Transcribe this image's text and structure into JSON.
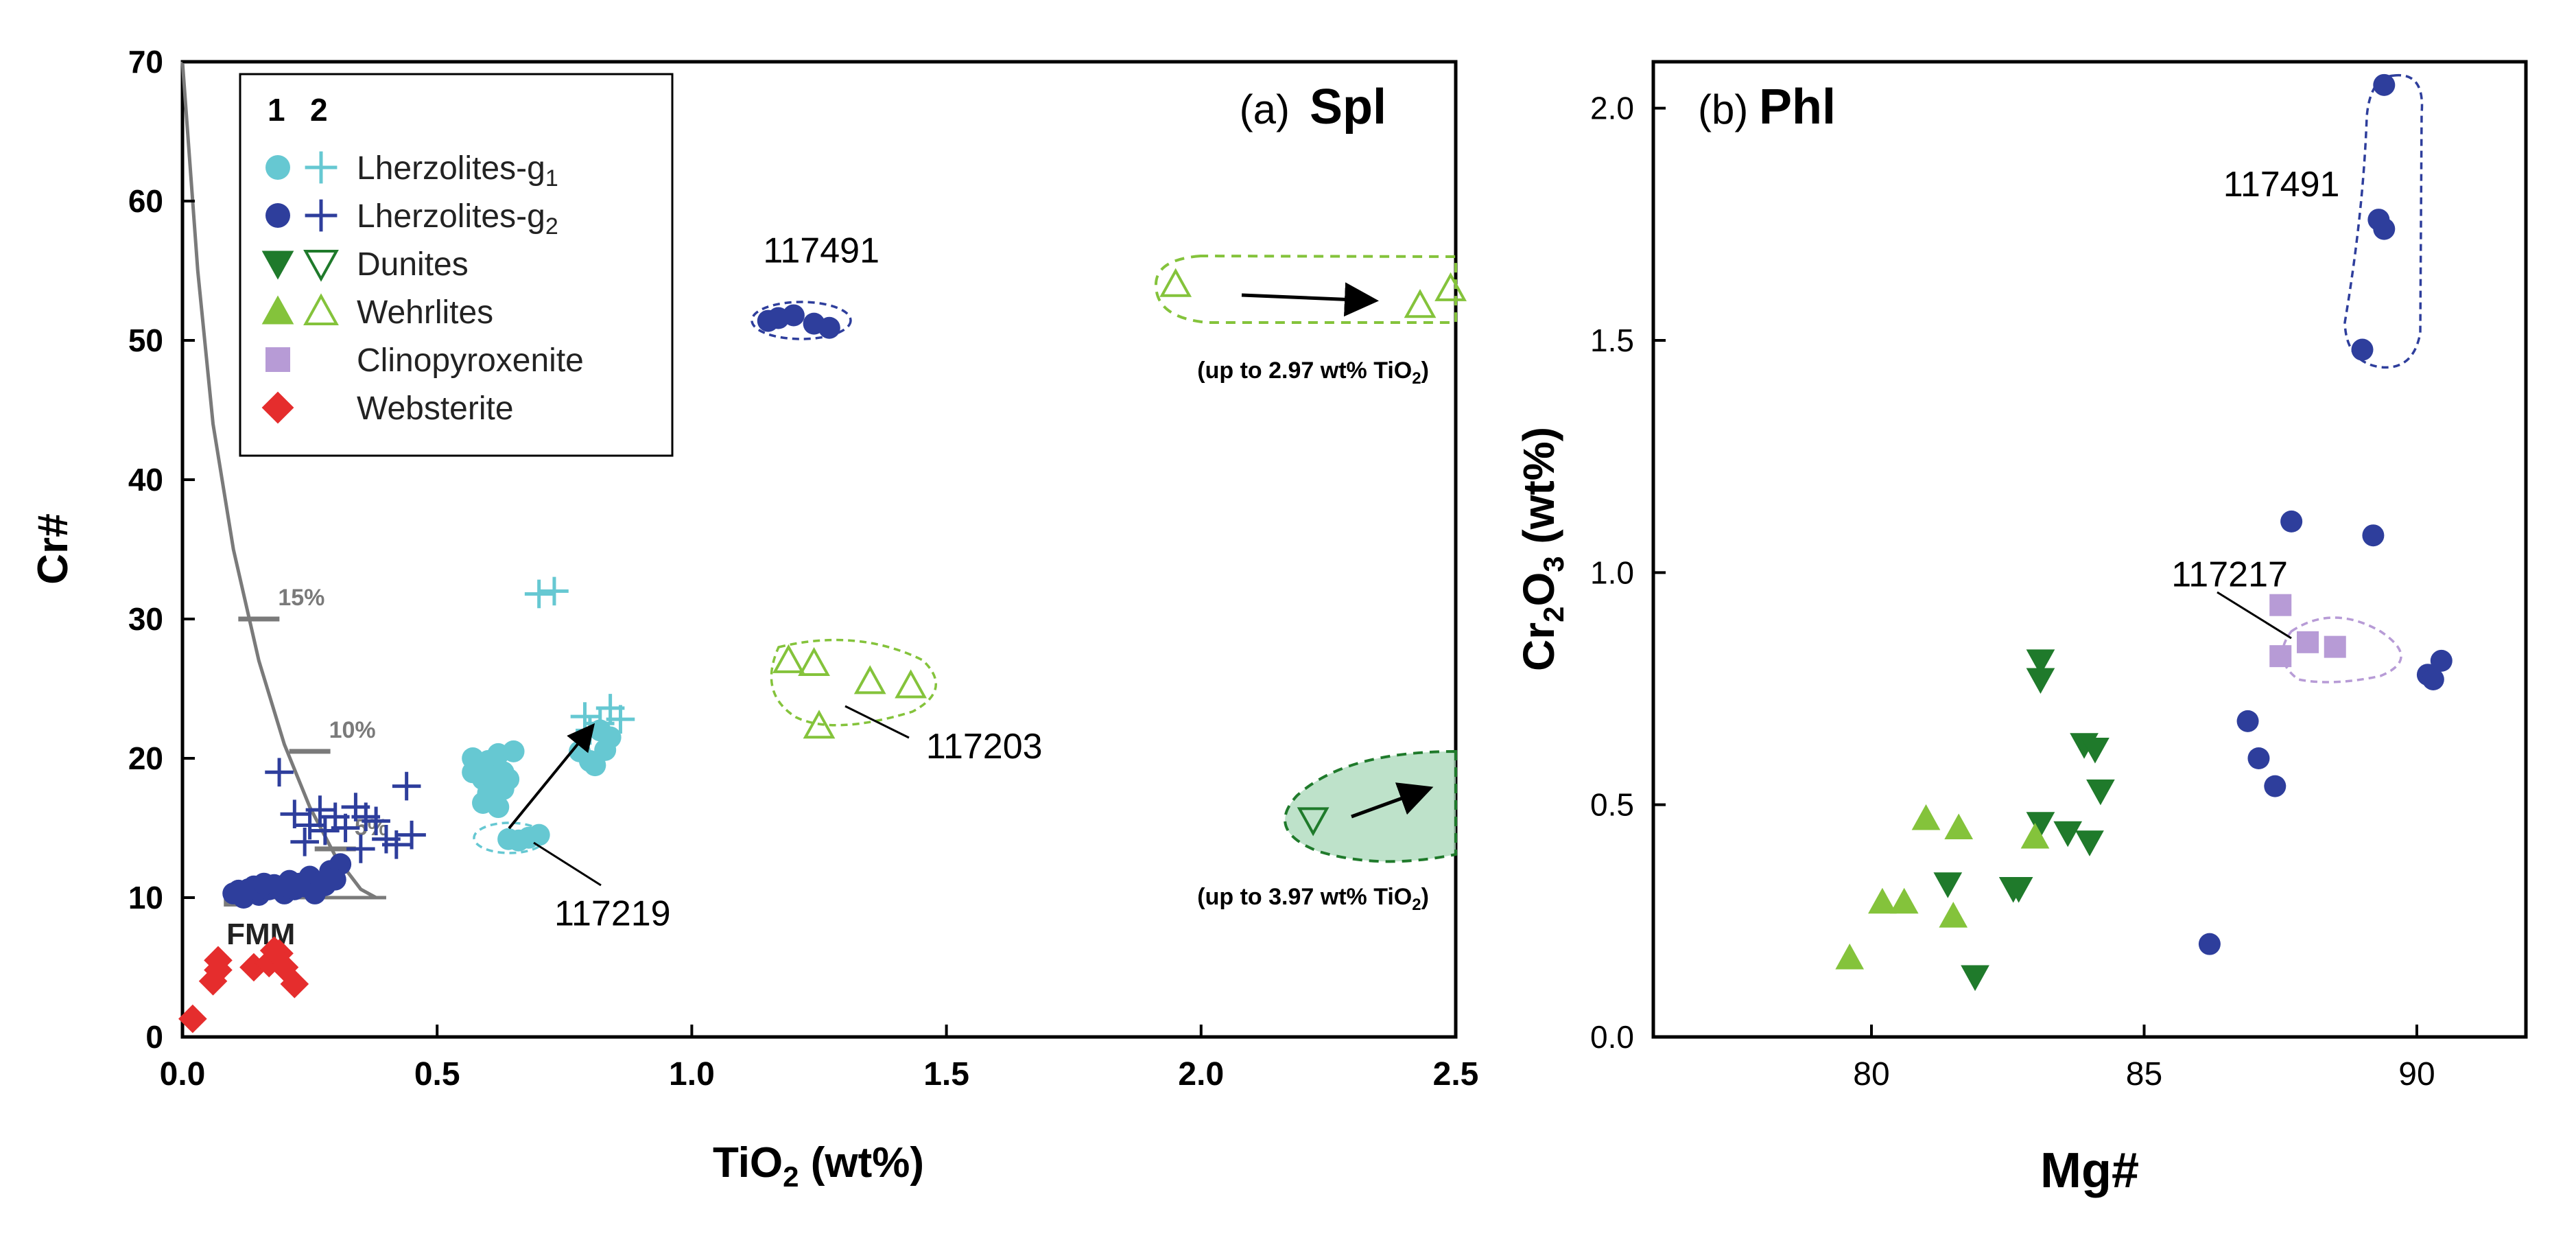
{
  "chart_data": [
    {
      "panel": "a",
      "type": "scatter",
      "panel_label": "(a)",
      "mineral": "Spl",
      "xlabel_main": "TiO",
      "xlabel_sub": "2",
      "xlabel_tail": " (wt%)",
      "ylabel": "Cr#",
      "xlim": [
        0,
        2.5
      ],
      "ylim": [
        0,
        70
      ],
      "x_ticks": [
        {
          "value": 0,
          "label": "0.0"
        },
        {
          "value": 0.5,
          "label": "0.5"
        },
        {
          "value": 1.0,
          "label": "1.0"
        },
        {
          "value": 1.5,
          "label": "1.5"
        },
        {
          "value": 2.0,
          "label": "2.0"
        },
        {
          "value": 2.5,
          "label": "2.5"
        }
      ],
      "y_ticks": [
        {
          "value": 0,
          "label": "0"
        },
        {
          "value": 10,
          "label": "10"
        },
        {
          "value": 20,
          "label": "20"
        },
        {
          "value": 30,
          "label": "30"
        },
        {
          "value": 40,
          "label": "40"
        },
        {
          "value": 50,
          "label": "50"
        },
        {
          "value": 60,
          "label": "60"
        },
        {
          "value": 70,
          "label": "70"
        }
      ],
      "legend": {
        "col_headers": [
          "1",
          "2"
        ],
        "entries": [
          {
            "label_main": "Lherzolites-g",
            "label_sub": "1",
            "sym1": "circle",
            "sym2": "plus",
            "color": "#66c8d2"
          },
          {
            "label_main": "Lherzolites-g",
            "label_sub": "2",
            "sym1": "circle",
            "sym2": "plus",
            "color": "#2e3e9c"
          },
          {
            "label_main": "Dunites",
            "label_sub": "",
            "sym1": "tri-down",
            "sym2": "tri-down-open",
            "color": "#1f7a2b"
          },
          {
            "label_main": "Wehrlites",
            "label_sub": "",
            "sym1": "tri-up",
            "sym2": "tri-up-open",
            "color": "#84c33b"
          },
          {
            "label_main": "Clinopyroxenite",
            "label_sub": "",
            "sym1": "square",
            "sym2": "",
            "color": "#b79bd6"
          },
          {
            "label_main": "Websterite",
            "label_sub": "",
            "sym1": "diamond",
            "sym2": "",
            "color": "#e52d2d"
          }
        ]
      },
      "melting_trend": {
        "label": "FMM",
        "origin": [
          0.1,
          10
        ],
        "curve": [
          [
            0.0,
            70
          ],
          [
            0.03,
            55
          ],
          [
            0.06,
            44
          ],
          [
            0.1,
            35
          ],
          [
            0.15,
            27
          ],
          [
            0.2,
            21
          ],
          [
            0.25,
            16.5
          ],
          [
            0.3,
            13
          ],
          [
            0.35,
            10.6
          ],
          [
            0.38,
            10
          ]
        ],
        "ticks": [
          {
            "label": "15%",
            "x": 0.15,
            "y": 30
          },
          {
            "label": "10%",
            "x": 0.25,
            "y": 20.5
          },
          {
            "label": "5%",
            "x": 0.3,
            "y": 13.5
          }
        ]
      },
      "series": [
        {
          "name": "Lherzolites-g1 (1)",
          "symbol": "circle",
          "color": "#66c8d2",
          "points": [
            [
              0.57,
              20.0
            ],
            [
              0.58,
              19.2
            ],
            [
              0.59,
              18.5
            ],
            [
              0.6,
              19.8
            ],
            [
              0.61,
              18.0
            ],
            [
              0.62,
              20.3
            ],
            [
              0.63,
              19.0
            ],
            [
              0.6,
              17.5
            ],
            [
              0.61,
              17.0
            ],
            [
              0.64,
              18.5
            ],
            [
              0.65,
              20.5
            ],
            [
              0.57,
              19.0
            ],
            [
              0.6,
              18.8
            ],
            [
              0.63,
              17.8
            ],
            [
              0.62,
              16.5
            ],
            [
              0.59,
              16.8
            ],
            [
              0.66,
              14.1
            ],
            [
              0.68,
              14.3
            ],
            [
              0.7,
              14.5
            ],
            [
              0.64,
              14.2
            ],
            [
              0.78,
              20.5
            ],
            [
              0.8,
              19.8
            ],
            [
              0.83,
              20.6
            ],
            [
              0.82,
              22.0
            ],
            [
              0.84,
              21.5
            ],
            [
              0.81,
              19.5
            ]
          ]
        },
        {
          "name": "Lherzolites-g1 (2)",
          "symbol": "plus",
          "color": "#66c8d2",
          "points": [
            [
              0.7,
              31.8
            ],
            [
              0.73,
              32.0
            ],
            [
              0.79,
              23.0
            ],
            [
              0.82,
              22.5
            ],
            [
              0.84,
              23.6
            ],
            [
              0.86,
              22.8
            ],
            [
              0.8,
              22.0
            ]
          ]
        },
        {
          "name": "Lherzolites-g2 (1)",
          "symbol": "circle",
          "color": "#2e3e9c",
          "points": [
            [
              0.1,
              10.3
            ],
            [
              0.12,
              10.0
            ],
            [
              0.14,
              10.8
            ],
            [
              0.15,
              10.2
            ],
            [
              0.17,
              10.6
            ],
            [
              0.18,
              10.9
            ],
            [
              0.2,
              10.3
            ],
            [
              0.21,
              11.2
            ],
            [
              0.22,
              10.6
            ],
            [
              0.24,
              10.8
            ],
            [
              0.25,
              11.5
            ],
            [
              0.27,
              11.1
            ],
            [
              0.29,
              11.9
            ],
            [
              0.31,
              12.4
            ],
            [
              0.13,
              10.6
            ],
            [
              0.16,
              11.0
            ],
            [
              0.19,
              10.8
            ],
            [
              0.23,
              11.0
            ],
            [
              0.11,
              10.5
            ],
            [
              0.26,
              10.3
            ],
            [
              0.28,
              10.9
            ],
            [
              0.3,
              11.3
            ],
            [
              1.15,
              51.4
            ],
            [
              1.17,
              51.6
            ],
            [
              1.2,
              51.8
            ],
            [
              1.24,
              51.2
            ],
            [
              1.27,
              50.9
            ]
          ]
        },
        {
          "name": "Lherzolites-g2 (2)",
          "symbol": "plus",
          "color": "#2e3e9c",
          "points": [
            [
              0.19,
              19.0
            ],
            [
              0.22,
              16.0
            ],
            [
              0.25,
              15.2
            ],
            [
              0.27,
              16.3
            ],
            [
              0.3,
              15.8
            ],
            [
              0.32,
              15.0
            ],
            [
              0.34,
              16.5
            ],
            [
              0.36,
              15.8
            ],
            [
              0.38,
              15.5
            ],
            [
              0.4,
              14.2
            ],
            [
              0.42,
              13.8
            ],
            [
              0.45,
              14.5
            ],
            [
              0.44,
              18.0
            ],
            [
              0.35,
              13.5
            ],
            [
              0.24,
              14.0
            ],
            [
              0.28,
              14.8
            ]
          ]
        },
        {
          "name": "Dunites (2)",
          "symbol": "tri-down-open",
          "color": "#1f7a2b",
          "points": [
            [
              2.22,
              15.6
            ]
          ]
        },
        {
          "name": "Wehrlites (2)",
          "symbol": "tri-up-open",
          "color": "#84c33b",
          "points": [
            [
              1.19,
              27.0
            ],
            [
              1.24,
              26.8
            ],
            [
              1.35,
              25.5
            ],
            [
              1.43,
              25.2
            ],
            [
              1.25,
              22.3
            ],
            [
              1.95,
              54.0
            ],
            [
              2.43,
              52.5
            ],
            [
              2.49,
              53.7
            ]
          ]
        },
        {
          "name": "Websterite (1)",
          "symbol": "diamond",
          "color": "#e52d2d",
          "points": [
            [
              0.02,
              1.3
            ],
            [
              0.06,
              4.0
            ],
            [
              0.07,
              4.8
            ],
            [
              0.07,
              5.5
            ],
            [
              0.14,
              5.0
            ],
            [
              0.17,
              5.3
            ],
            [
              0.18,
              6.2
            ],
            [
              0.19,
              6.0
            ],
            [
              0.2,
              5.0
            ],
            [
              0.22,
              3.8
            ]
          ]
        }
      ],
      "annotations": [
        {
          "text": "117491",
          "x": 1.14,
          "y": 55.6
        },
        {
          "text": "117203",
          "x": 1.46,
          "y": 20.0
        },
        {
          "text": "117219",
          "x": 0.73,
          "y": 8.0
        },
        {
          "text": "(up to 2.97 wt% TiO",
          "sub": "2",
          "tail": ")",
          "x": 2.22,
          "y": 47.3
        },
        {
          "text": "(up to 3.97 wt% TiO",
          "sub": "2",
          "tail": ")",
          "x": 2.22,
          "y": 9.5
        }
      ]
    },
    {
      "panel": "b",
      "type": "scatter",
      "panel_label": "(b)",
      "mineral": "Phl",
      "xlabel": "Mg#",
      "ylabel_main": "Cr",
      "ylabel_sub1": "2",
      "ylabel_mid": "O",
      "ylabel_sub2": "3",
      "ylabel_tail": " (wt%)",
      "xlim": [
        76,
        92
      ],
      "ylim": [
        0,
        2.1
      ],
      "x_ticks": [
        {
          "value": 80,
          "label": "80"
        },
        {
          "value": 85,
          "label": "85"
        },
        {
          "value": 90,
          "label": "90"
        }
      ],
      "y_ticks": [
        {
          "value": 0,
          "label": "0.0"
        },
        {
          "value": 0.5,
          "label": "0.5"
        },
        {
          "value": 1.0,
          "label": "1.0"
        },
        {
          "value": 1.5,
          "label": "1.5"
        },
        {
          "value": 2.0,
          "label": "2.0"
        }
      ],
      "series": [
        {
          "name": "Lherzolites-g2 (1)",
          "symbol": "circle",
          "color": "#2e3e9c",
          "points": [
            [
              89.4,
              2.05
            ],
            [
              89.3,
              1.76
            ],
            [
              89.4,
              1.74
            ],
            [
              89.0,
              1.48
            ],
            [
              87.7,
              1.11
            ],
            [
              89.2,
              1.08
            ],
            [
              86.9,
              0.68
            ],
            [
              87.1,
              0.6
            ],
            [
              87.4,
              0.54
            ],
            [
              86.2,
              0.2
            ],
            [
              90.2,
              0.78
            ],
            [
              90.3,
              0.77
            ],
            [
              90.45,
              0.81
            ]
          ]
        },
        {
          "name": "Clinopyroxenite (1)",
          "symbol": "square",
          "color": "#b79bd6",
          "points": [
            [
              87.5,
              0.93
            ],
            [
              88.0,
              0.85
            ],
            [
              88.5,
              0.84
            ],
            [
              87.5,
              0.82
            ]
          ]
        },
        {
          "name": "Dunites (1)",
          "symbol": "tri-down",
          "color": "#1f7a2b",
          "points": [
            [
              83.1,
              0.81
            ],
            [
              83.1,
              0.77
            ],
            [
              83.9,
              0.63
            ],
            [
              84.1,
              0.62
            ],
            [
              84.2,
              0.53
            ],
            [
              83.1,
              0.46
            ],
            [
              83.6,
              0.44
            ],
            [
              84.0,
              0.42
            ],
            [
              81.4,
              0.33
            ],
            [
              82.6,
              0.32
            ],
            [
              82.7,
              0.32
            ],
            [
              81.9,
              0.13
            ]
          ]
        },
        {
          "name": "Wehrlites (1)",
          "symbol": "tri-up",
          "color": "#84c33b",
          "points": [
            [
              81.0,
              0.47
            ],
            [
              81.6,
              0.45
            ],
            [
              83.0,
              0.43
            ],
            [
              80.2,
              0.29
            ],
            [
              80.6,
              0.29
            ],
            [
              81.5,
              0.26
            ],
            [
              79.6,
              0.17
            ]
          ]
        }
      ],
      "annotations": [
        {
          "text": "117491",
          "x": 86.45,
          "y": 1.81
        },
        {
          "text": "117217",
          "x": 85.5,
          "y": 0.97
        }
      ]
    }
  ]
}
